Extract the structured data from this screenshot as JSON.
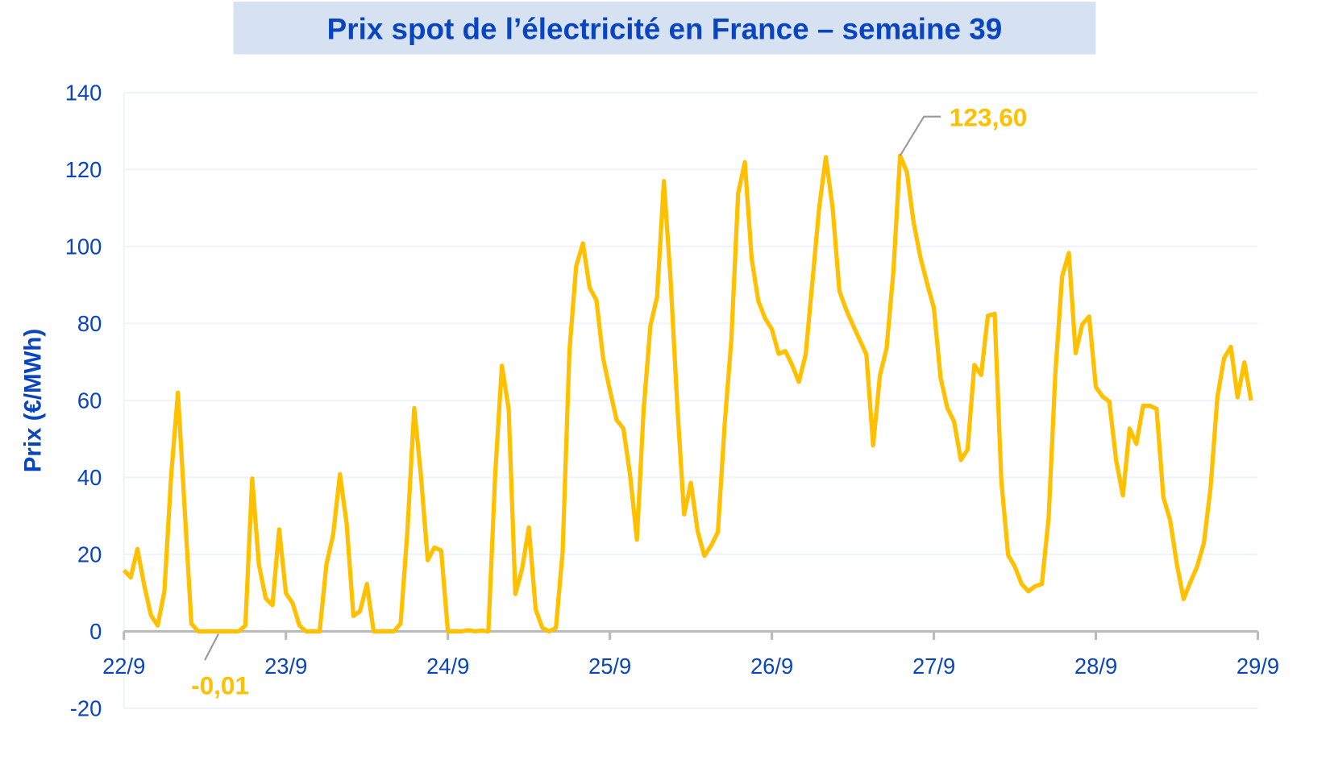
{
  "chart_data": {
    "type": "line",
    "title": "Prix spot de l’électricité en France – semaine 39",
    "xlabel": "",
    "ylabel": "Prix (€/MWh)",
    "ylim": [
      -20,
      140
    ],
    "yticks": [
      -20,
      0,
      20,
      40,
      60,
      80,
      100,
      120,
      140
    ],
    "xticks": [
      "22/9",
      "23/9",
      "24/9",
      "25/9",
      "26/9",
      "27/9",
      "28/9",
      "29/9"
    ],
    "x_unit": "hours since 22/9 00:00",
    "grid": true,
    "colors": {
      "line": "#ffc000",
      "text": "#0a45c0",
      "title_bg": "#d6e1f2",
      "axis": "#bbbbbb",
      "grid": "#eef3fb"
    },
    "series": [
      {
        "name": "Prix spot",
        "values": [
          15.9,
          14,
          21.4,
          12,
          4.2,
          1.5,
          10.4,
          40.6,
          62,
          31.7,
          2,
          0,
          0,
          0,
          -0.01,
          0,
          0,
          0,
          1.5,
          39.7,
          17.4,
          8.6,
          6.8,
          26.5,
          9.9,
          7.3,
          1.5,
          0,
          0,
          0,
          17.4,
          25.1,
          40.8,
          28,
          4,
          5.3,
          12.3,
          0,
          0,
          0,
          0,
          2,
          26,
          58,
          40.6,
          18.5,
          21.8,
          21,
          0,
          0,
          0,
          0.3,
          0,
          0.2,
          0,
          40.6,
          69,
          57.8,
          9.7,
          16.3,
          27,
          5.7,
          0.9,
          0,
          0.9,
          20.7,
          72.8,
          94.8,
          100.8,
          89.3,
          86,
          71,
          62.6,
          54.9,
          52.7,
          40.6,
          23.8,
          57.5,
          79.4,
          86.9,
          117,
          91.3,
          58.2,
          30.4,
          38.6,
          26,
          19.6,
          22.3,
          25.8,
          53.8,
          75.8,
          113.8,
          121.9,
          96.8,
          85.8,
          81.3,
          78.5,
          72.1,
          72.8,
          69.2,
          64.8,
          71.9,
          90.6,
          110,
          123.2,
          110,
          88.4,
          83.6,
          79.6,
          75.8,
          71.9,
          48.3,
          66.4,
          73.6,
          93.5,
          123.6,
          119.3,
          106.3,
          97.2,
          90.4,
          84,
          65.9,
          58,
          54.5,
          44.5,
          47.2,
          69.2,
          66.6,
          82,
          82.5,
          39,
          19.8,
          16.8,
          12.3,
          10.4,
          11.7,
          12.3,
          29.5,
          67,
          92.2,
          98.3,
          72.3,
          79.8,
          81.8,
          63.5,
          61,
          59.7,
          44.5,
          35.3,
          52.7,
          48.7,
          58.6,
          58.6,
          57.8,
          34.8,
          28.9,
          17.4,
          8.4,
          12.8,
          16.8,
          22.9,
          37.3,
          60.8,
          71,
          73.9,
          60.8,
          69.9,
          60
        ]
      }
    ],
    "annotations": [
      {
        "label": "-0,01",
        "hour": 14,
        "value": -0.01
      },
      {
        "label": "123,60",
        "hour": 115,
        "value": 123.6
      }
    ]
  }
}
